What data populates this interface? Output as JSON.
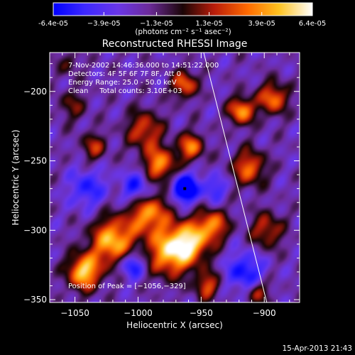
{
  "chart_data": {
    "type": "heatmap",
    "title": "Reconstructed RHESSI Image",
    "xlabel": "Heliocentric X (arcsec)",
    "ylabel": "Heliocentric Y (arcsec)",
    "xlim": [
      -1070,
      -872
    ],
    "ylim": [
      -352,
      -172
    ],
    "x_ticks": [
      -1050,
      -1000,
      -950,
      -900
    ],
    "x_tick_labels": [
      "−1050",
      "−1000",
      "−950",
      "−900"
    ],
    "y_ticks": [
      -200,
      -250,
      -300,
      -350
    ],
    "y_tick_labels": [
      "−200",
      "−250",
      "−300",
      "−350"
    ],
    "colorbar": {
      "range": [
        -6.4e-05,
        6.4e-05
      ],
      "ticks": [
        -6.4e-05,
        -3.9e-05,
        -1.3e-05,
        1.3e-05,
        3.9e-05,
        6.4e-05
      ],
      "tick_labels": [
        "-6.4e-05",
        "−3.9e-05",
        "−1.3e-05",
        "1.3e-05",
        "3.9e-05",
        "6.4e-05"
      ],
      "unit_label": "(photons cm⁻² s⁻¹ asec⁻²)"
    },
    "annotations": [
      "7-Nov-2002 14:46:36.000 to 14:51:22.000",
      "Detectors: 4F 5F 6F 7F 8F, Att 0",
      "Energy Range: 25.0 - 50.0 keV",
      "Clean     Total counts: 3.10E+03"
    ],
    "peak_label": "Position of Peak = [−1056,−329]",
    "peak": [
      -1056,
      -329
    ],
    "min_marker": [
      -963,
      -270
    ],
    "limb_line": [
      [
        -948,
        -172
      ],
      [
        -898,
        -352
      ]
    ],
    "blobs": [
      [
        -1043,
        -330,
        9,
        1.0
      ],
      [
        -1020,
        -308,
        12,
        0.95
      ],
      [
        -992,
        -287,
        11,
        0.85
      ],
      [
        -975,
        -316,
        12,
        0.9
      ],
      [
        -958,
        -308,
        11,
        0.85
      ],
      [
        -940,
        -296,
        8,
        0.7
      ],
      [
        -983,
        -253,
        9,
        0.8
      ],
      [
        -995,
        -228,
        10,
        0.6
      ],
      [
        -958,
        -240,
        7,
        0.75
      ],
      [
        -918,
        -214,
        7,
        0.85
      ],
      [
        -893,
        -205,
        8,
        0.75
      ],
      [
        -912,
        -255,
        9,
        0.7
      ],
      [
        -898,
        -300,
        9,
        0.55
      ],
      [
        -963,
        -195,
        7,
        0.7
      ],
      [
        -1035,
        -240,
        7,
        0.5
      ],
      [
        -945,
        -340,
        7,
        0.6
      ],
      [
        -905,
        -345,
        6,
        0.55
      ],
      [
        -1052,
        -210,
        8,
        0.35
      ],
      [
        -1055,
        -180,
        6,
        0.3
      ],
      [
        -963,
        -270,
        7,
        -1.0
      ],
      [
        -1000,
        -270,
        9,
        -0.6
      ],
      [
        -1040,
        -270,
        10,
        -0.45
      ],
      [
        -915,
        -330,
        10,
        -0.55
      ],
      [
        -1005,
        -325,
        7,
        -0.6
      ],
      [
        -940,
        -270,
        7,
        -0.4
      ]
    ],
    "colors": {
      "background": "#000000",
      "frame": "#ffffff",
      "limb": "#ffffff"
    }
  },
  "footer": {
    "timestamp": "15-Apr-2013 21:43"
  }
}
